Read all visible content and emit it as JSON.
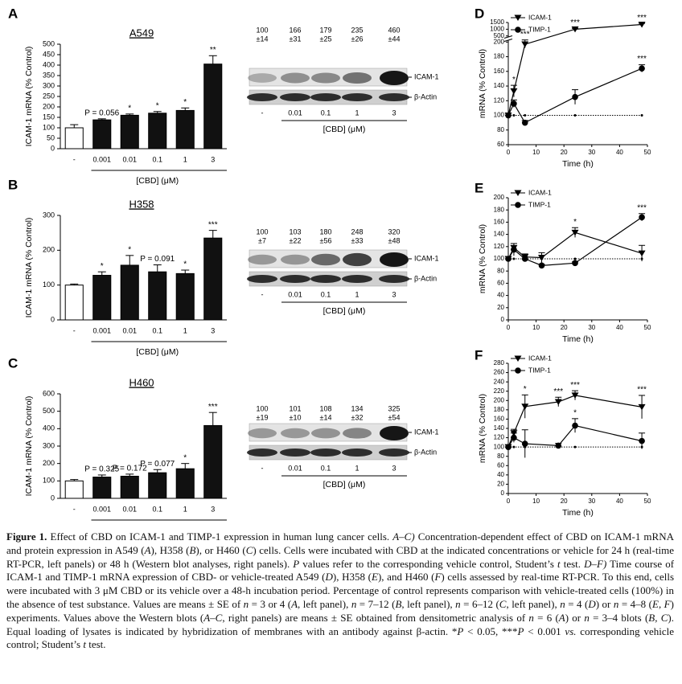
{
  "chart_data": [
    {
      "type": "bar",
      "panel": "A",
      "title": "A549",
      "y_label": "ICAM-1 mRNA (% Control)",
      "x_label": "[CBD] (μM)",
      "categories": [
        "-",
        "0.001",
        "0.01",
        "0.1",
        "1",
        "3"
      ],
      "values": [
        100,
        138,
        160,
        170,
        183,
        405
      ],
      "errors": [
        15,
        5,
        6,
        8,
        12,
        40
      ],
      "annotations": [
        null,
        "P = 0.056",
        "*",
        "*",
        "*",
        "**"
      ],
      "colors": [
        "#ffffff",
        "#111111",
        "#111111",
        "#111111",
        "#111111",
        "#111111"
      ],
      "ylim": [
        0,
        500
      ],
      "yticks": [
        0,
        50,
        100,
        150,
        200,
        250,
        300,
        350,
        400,
        450,
        500
      ]
    },
    {
      "type": "bar",
      "panel": "B",
      "title": "H358",
      "y_label": "ICAM-1 mRNA (% Control)",
      "x_label": "[CBD] (μM)",
      "categories": [
        "-",
        "0.001",
        "0.01",
        "0.1",
        "1",
        "3"
      ],
      "values": [
        100,
        128,
        157,
        138,
        133,
        235
      ],
      "errors": [
        3,
        10,
        28,
        20,
        10,
        22
      ],
      "annotations": [
        null,
        "*",
        "*",
        "P = 0.091",
        "*",
        "***"
      ],
      "colors": [
        "#ffffff",
        "#111111",
        "#111111",
        "#111111",
        "#111111",
        "#111111"
      ],
      "ylim": [
        0,
        300
      ],
      "yticks": [
        0,
        100,
        200,
        300
      ]
    },
    {
      "type": "bar",
      "panel": "C",
      "title": "H460",
      "y_label": "ICAM-1 mRNA (% Control)",
      "x_label": "[CBD] (μM)",
      "categories": [
        "-",
        "0.001",
        "0.01",
        "0.1",
        "1",
        "3"
      ],
      "values": [
        100,
        122,
        127,
        147,
        170,
        418
      ],
      "errors": [
        8,
        12,
        12,
        18,
        30,
        75
      ],
      "annotations": [
        null,
        "P = 0.325",
        "P = 0.172",
        "P = 0.077",
        "*",
        "***"
      ],
      "colors": [
        "#ffffff",
        "#111111",
        "#111111",
        "#111111",
        "#111111",
        "#111111"
      ],
      "ylim": [
        0,
        600
      ],
      "yticks": [
        0,
        100,
        200,
        300,
        400,
        500,
        600
      ]
    },
    {
      "type": "line",
      "panel": "D",
      "y_label": "mRNA (% Control)",
      "x_label": "Time (h)",
      "legend": "upper left",
      "x": [
        0,
        2,
        6,
        24,
        48
      ],
      "xlim": [
        0,
        50
      ],
      "xticks": [
        0,
        10,
        20,
        30,
        40,
        50
      ],
      "ylim": [
        60,
        1500
      ],
      "ybreak": [
        200,
        500
      ],
      "yticks": [
        60,
        80,
        100,
        120,
        140,
        160,
        180,
        200,
        500,
        1000,
        1500
      ],
      "series": [
        {
          "name": "ICAM-1",
          "color": "#000000",
          "marker": "triangle-down",
          "values": [
            100,
            133,
            197,
            1000,
            1350
          ],
          "errors": [
            0,
            8,
            5,
            60,
            80
          ],
          "annotations": [
            null,
            "*",
            "***",
            "***",
            "***"
          ]
        },
        {
          "name": "TIMP-1",
          "color": "#000000",
          "marker": "circle",
          "values": [
            100,
            116,
            90,
            125,
            164
          ],
          "errors": [
            0,
            5,
            3,
            10,
            5
          ],
          "annotations": [
            null,
            null,
            null,
            null,
            "***"
          ]
        },
        {
          "color": "#000000",
          "marker": "dot",
          "dash": true,
          "values": [
            100,
            100,
            100,
            100,
            100
          ]
        }
      ]
    },
    {
      "type": "line",
      "panel": "E",
      "y_label": "mRNA (% Control)",
      "x_label": "Time (h)",
      "legend": "upper left",
      "x": [
        0,
        2,
        6,
        12,
        24,
        48
      ],
      "xlim": [
        0,
        50
      ],
      "xticks": [
        0,
        10,
        20,
        30,
        40,
        50
      ],
      "ylim": [
        0,
        200
      ],
      "yticks": [
        0,
        20,
        40,
        60,
        80,
        100,
        120,
        140,
        160,
        180,
        200
      ],
      "series": [
        {
          "name": "ICAM-1",
          "color": "#000000",
          "marker": "triangle-down",
          "values": [
            100,
            118,
            103,
            102,
            143,
            109
          ],
          "errors": [
            0,
            7,
            5,
            8,
            8,
            13
          ],
          "annotations": [
            null,
            null,
            null,
            null,
            "*",
            null
          ]
        },
        {
          "name": "TIMP-1",
          "color": "#000000",
          "marker": "circle",
          "values": [
            100,
            115,
            100,
            89,
            93,
            168
          ],
          "errors": [
            0,
            10,
            3,
            2,
            2,
            6
          ],
          "annotations": [
            null,
            null,
            null,
            null,
            null,
            "***"
          ]
        },
        {
          "color": "#000000",
          "marker": "dot",
          "dash": true,
          "values": [
            100,
            100,
            100,
            100,
            100,
            100
          ]
        }
      ]
    },
    {
      "type": "line",
      "panel": "F",
      "y_label": "mRNA (% Control)",
      "x_label": "Time (h)",
      "legend": "upper left",
      "x": [
        0,
        2,
        6,
        18,
        24,
        48
      ],
      "xlim": [
        0,
        50
      ],
      "xticks": [
        0,
        10,
        20,
        30,
        40,
        50
      ],
      "ylim": [
        0,
        280
      ],
      "yticks": [
        0,
        20,
        40,
        60,
        80,
        100,
        120,
        140,
        160,
        180,
        200,
        220,
        240,
        260,
        280
      ],
      "series": [
        {
          "name": "ICAM-1",
          "color": "#000000",
          "marker": "triangle-down",
          "values": [
            100,
            130,
            187,
            197,
            211,
            186
          ],
          "errors": [
            0,
            8,
            25,
            10,
            10,
            25
          ],
          "annotations": [
            null,
            null,
            "*",
            "***",
            "***",
            "***"
          ]
        },
        {
          "name": "TIMP-1",
          "color": "#000000",
          "marker": "circle",
          "values": [
            100,
            120,
            107,
            103,
            146,
            113
          ],
          "errors": [
            0,
            10,
            30,
            5,
            15,
            17
          ],
          "annotations": [
            null,
            null,
            null,
            null,
            "*",
            null
          ]
        },
        {
          "color": "#000000",
          "marker": "dot",
          "dash": true,
          "values": [
            100,
            100,
            100,
            100,
            100,
            100
          ]
        }
      ]
    }
  ],
  "blots": [
    {
      "numbers": [
        100,
        166,
        179,
        235,
        460
      ],
      "errors": [
        14,
        31,
        25,
        26,
        44
      ],
      "error_labels": [
        "±14",
        "±31",
        "±25",
        "±26",
        "±44"
      ],
      "lanes": [
        "-",
        "0.01",
        "0.1",
        "1",
        "3"
      ],
      "bands": [
        "ICAM-1",
        "β-Actin"
      ],
      "x_label": "[CBD] (μM)"
    },
    {
      "numbers": [
        100,
        103,
        180,
        248,
        320
      ],
      "errors": [
        7,
        22,
        56,
        33,
        48
      ],
      "error_labels": [
        "±7",
        "±22",
        "±56",
        "±33",
        "±48"
      ],
      "lanes": [
        "-",
        "0.01",
        "0.1",
        "1",
        "3"
      ],
      "bands": [
        "ICAM-1",
        "β-Actin"
      ],
      "x_label": "[CBD] (μM)"
    },
    {
      "numbers": [
        100,
        101,
        108,
        134,
        325
      ],
      "errors": [
        19,
        10,
        14,
        32,
        54
      ],
      "error_labels": [
        "±19",
        "±10",
        "±14",
        "±32",
        "±54"
      ],
      "lanes": [
        "-",
        "0.01",
        "0.1",
        "1",
        "3"
      ],
      "bands": [
        "ICAM-1",
        "β-Actin"
      ],
      "x_label": "[CBD] (μM)"
    }
  ],
  "caption": {
    "label": "Figure 1.",
    "runs": [
      {
        "text": " Effect of CBD on ICAM-1 and TIMP-1 expression in human lung cancer cells. "
      },
      {
        "text": "A–C)",
        "italic": true
      },
      {
        "text": " Concentration-dependent effect of CBD on ICAM-1 mRNA and protein expression in A549 ("
      },
      {
        "text": "A",
        "italic": true
      },
      {
        "text": "), H358 ("
      },
      {
        "text": "B",
        "italic": true
      },
      {
        "text": "), or H460 ("
      },
      {
        "text": "C",
        "italic": true
      },
      {
        "text": ") cells. Cells were incubated with CBD at the indicated concentrations or vehicle for 24 h (real-time RT-PCR, left panels) or 48 h (Western blot analyses, right panels). "
      },
      {
        "text": "P",
        "italic": true
      },
      {
        "text": " values refer to the corresponding vehicle control, Student’s "
      },
      {
        "text": "t",
        "italic": true
      },
      {
        "text": " test. "
      },
      {
        "text": "D–F)",
        "italic": true
      },
      {
        "text": " Time course of ICAM-1 and TIMP-1 mRNA expression of CBD- or vehicle-treated A549 ("
      },
      {
        "text": "D",
        "italic": true
      },
      {
        "text": "), H358 ("
      },
      {
        "text": "E",
        "italic": true
      },
      {
        "text": "), and H460 ("
      },
      {
        "text": "F",
        "italic": true
      },
      {
        "text": ") cells assessed by real-time RT-PCR. To this end, cells were incubated with 3 μM CBD or its vehicle over a 48-h incubation period. Percentage of control represents comparison with vehicle-treated cells (100%) in the absence of test substance. Values are means ± SE of "
      },
      {
        "text": "n",
        "italic": true
      },
      {
        "text": " = 3 or 4 ("
      },
      {
        "text": "A",
        "italic": true
      },
      {
        "text": ", left panel), "
      },
      {
        "text": "n",
        "italic": true
      },
      {
        "text": " = 7–12 ("
      },
      {
        "text": "B",
        "italic": true
      },
      {
        "text": ", left panel), "
      },
      {
        "text": "n",
        "italic": true
      },
      {
        "text": " = 6–12 ("
      },
      {
        "text": "C",
        "italic": true
      },
      {
        "text": ", left panel), "
      },
      {
        "text": "n",
        "italic": true
      },
      {
        "text": " = 4 ("
      },
      {
        "text": "D",
        "italic": true
      },
      {
        "text": ") or "
      },
      {
        "text": "n",
        "italic": true
      },
      {
        "text": " = 4–8 ("
      },
      {
        "text": "E, F",
        "italic": true
      },
      {
        "text": ") experiments. Values above the Western blots ("
      },
      {
        "text": "A–C",
        "italic": true
      },
      {
        "text": ", right panels) are means ± SE obtained from densitometric analysis of "
      },
      {
        "text": "n",
        "italic": true
      },
      {
        "text": " = 6 ("
      },
      {
        "text": "A",
        "italic": true
      },
      {
        "text": ") or "
      },
      {
        "text": "n",
        "italic": true
      },
      {
        "text": " = 3–4 blots ("
      },
      {
        "text": "B, C",
        "italic": true
      },
      {
        "text": "). Equal loading of lysates is indicated by hybridization of membranes with an antibody against β-actin. *"
      },
      {
        "text": "P",
        "italic": true
      },
      {
        "text": " < 0.05, ***"
      },
      {
        "text": "P",
        "italic": true
      },
      {
        "text": " < 0.001 "
      },
      {
        "text": "vs.",
        "italic": true
      },
      {
        "text": " corresponding vehicle control; Student’s "
      },
      {
        "text": "t",
        "italic": true
      },
      {
        "text": " test."
      }
    ]
  }
}
